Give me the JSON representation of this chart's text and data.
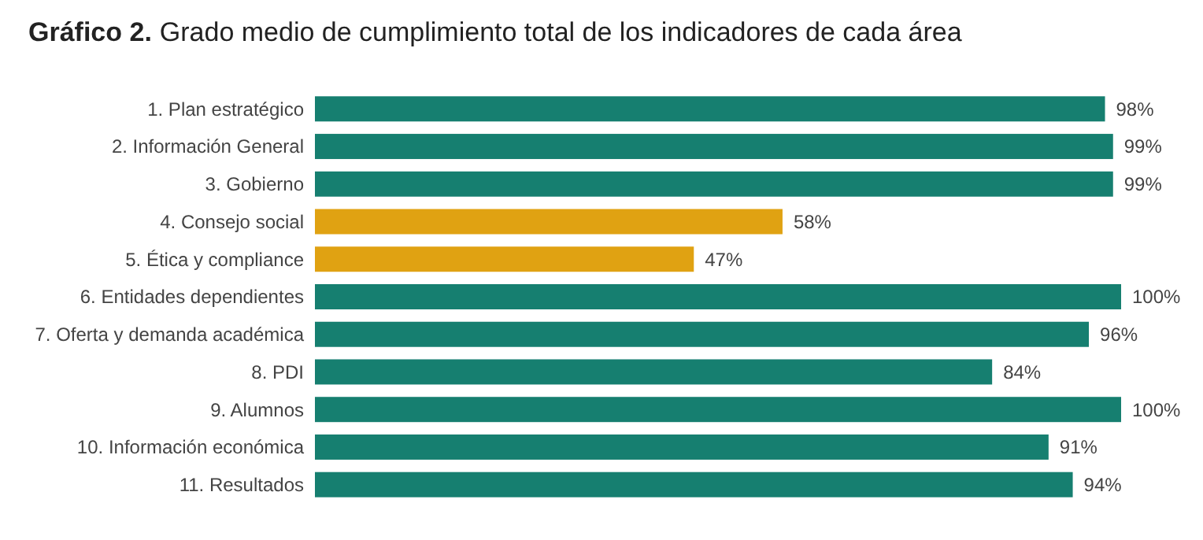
{
  "chart_data": {
    "type": "bar",
    "orientation": "horizontal",
    "title": "Gráfico 2.",
    "subtitle": "Grado medio de cumplimiento total de los indicadores de cada área",
    "categories": [
      "1. Plan estratégico",
      "2. Información General",
      "3. Gobierno",
      "4. Consejo social",
      "5. Ética y compliance",
      "6. Entidades dependientes",
      "7. Oferta y demanda académica",
      "8. PDI",
      "9. Alumnos",
      "10. Información económica",
      "11. Resultados"
    ],
    "values": [
      98,
      99,
      99,
      58,
      47,
      100,
      96,
      84,
      100,
      91,
      94
    ],
    "value_labels": [
      "98%",
      "99%",
      "99%",
      "58%",
      "47%",
      "100%",
      "96%",
      "84%",
      "100%",
      "91%",
      "94%"
    ],
    "colors": [
      "#167f70",
      "#167f70",
      "#167f70",
      "#e0a212",
      "#e0a212",
      "#167f70",
      "#167f70",
      "#167f70",
      "#167f70",
      "#167f70",
      "#167f70"
    ]
  }
}
